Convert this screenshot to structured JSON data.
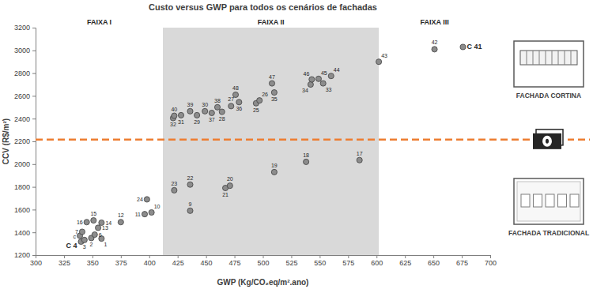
{
  "chart_data": {
    "type": "scatter",
    "title": "Custo versus GWP para todos os cenários de fachadas",
    "x_label": "GWP (Kg/CO₂eq/m².ano)",
    "y_label": "CCV (R$/m²)",
    "xlim": [
      300,
      700
    ],
    "xticks": [
      300,
      325,
      350,
      375,
      400,
      425,
      450,
      475,
      500,
      525,
      550,
      575,
      600,
      625,
      650,
      675,
      700
    ],
    "ylim": [
      1200,
      3200
    ],
    "yticks": [
      1200,
      1400,
      1600,
      1800,
      2000,
      2200,
      2400,
      2600,
      2800,
      3000,
      3200
    ],
    "grid": false,
    "marker": "circle",
    "color": "#8c8c8c",
    "labels": [
      "C 4",
      "3",
      "2",
      "1",
      "c",
      "6",
      "7",
      "13",
      "16",
      "15",
      "14",
      "12",
      "11",
      "10",
      "24",
      "9",
      "23",
      "22",
      "21",
      "20",
      "19",
      "18",
      "17",
      "32",
      "40",
      "31",
      "39",
      "29",
      "30",
      "37",
      "38",
      "28",
      "27",
      "48",
      "36",
      "25",
      "26",
      "47",
      "35",
      "34",
      "46",
      "45",
      "33",
      "44",
      "43",
      "42",
      "C 41"
    ],
    "x": [
      340,
      343,
      349,
      358,
      339,
      352,
      341,
      355,
      345,
      351,
      358,
      375,
      396,
      402,
      398,
      436,
      422,
      436,
      467,
      471,
      510,
      538,
      585,
      421,
      422,
      428,
      436,
      442,
      449,
      455,
      460,
      464,
      472,
      476,
      479,
      494,
      497,
      508,
      510,
      542,
      543,
      549,
      553,
      560,
      602,
      651,
      676
    ],
    "values": [
      1318,
      1333,
      1350,
      1345,
      1370,
      1380,
      1405,
      1440,
      1490,
      1505,
      1485,
      1490,
      1560,
      1575,
      1690,
      1590,
      1770,
      1820,
      1790,
      1810,
      1930,
      2020,
      2035,
      2405,
      2425,
      2430,
      2465,
      2430,
      2465,
      2450,
      2500,
      2460,
      2510,
      2610,
      2545,
      2535,
      2560,
      2710,
      2630,
      2700,
      2745,
      2750,
      2710,
      2775,
      2900,
      3010,
      3030
    ],
    "bands": [
      {
        "x0": 300,
        "x1": 412,
        "label": "FAIXA I"
      },
      {
        "x0": 412,
        "x1": 602,
        "label": "FAIXA II",
        "color": "#d9d9d9"
      },
      {
        "x0": 602,
        "x1": 700,
        "label": "FAIXA III"
      }
    ],
    "reference_lines": [
      {
        "y": 2215,
        "color": "#ed7d31",
        "line_style": "dashed"
      }
    ],
    "annotations": [
      "FACHADA CORTINA",
      "FACHADA TRADICIONAL"
    ]
  }
}
